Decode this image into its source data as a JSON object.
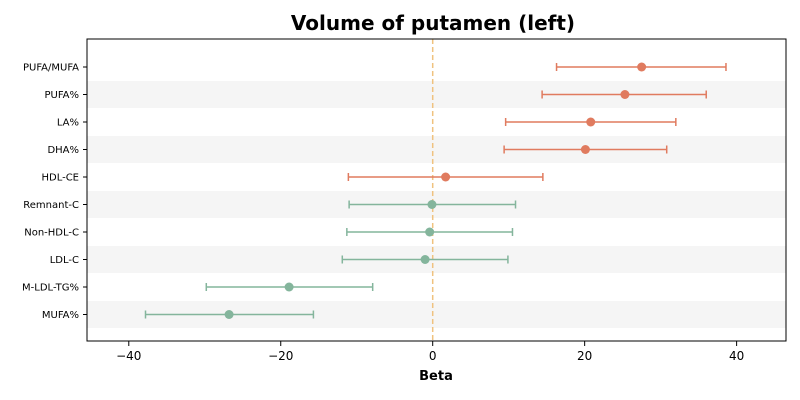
{
  "chart_data": {
    "type": "forest",
    "title": "Volume of putamen (left)",
    "xlabel": "Beta",
    "ylabel": "",
    "xlim": [
      -45.5,
      46.5
    ],
    "xticks": [
      -40,
      -20,
      0,
      20,
      40
    ],
    "xtick_labels": [
      "−40",
      "−20",
      "0",
      "20",
      "40"
    ],
    "reference_line": 0,
    "grid": false,
    "alternating_row_bands": true,
    "colors": {
      "positive": "#e07b5f",
      "negative": "#84b59c",
      "reference_line": "#f0c27f",
      "band": "#f5f5f5"
    },
    "rows": [
      {
        "label": "PUFA/MUFA",
        "beta": 27.5,
        "lower": 16.3,
        "upper": 38.6,
        "color": "positive"
      },
      {
        "label": "PUFA%",
        "beta": 25.3,
        "lower": 14.4,
        "upper": 36.0,
        "color": "positive"
      },
      {
        "label": "LA%",
        "beta": 20.8,
        "lower": 9.6,
        "upper": 32.0,
        "color": "positive"
      },
      {
        "label": "DHA%",
        "beta": 20.1,
        "lower": 9.4,
        "upper": 30.8,
        "color": "positive"
      },
      {
        "label": "HDL-CE",
        "beta": 1.7,
        "lower": -11.1,
        "upper": 14.5,
        "color": "positive"
      },
      {
        "label": "Remnant-C",
        "beta": -0.1,
        "lower": -11.0,
        "upper": 10.9,
        "color": "negative"
      },
      {
        "label": "Non-HDL-C",
        "beta": -0.4,
        "lower": -11.3,
        "upper": 10.5,
        "color": "negative"
      },
      {
        "label": "LDL-C",
        "beta": -1.0,
        "lower": -11.9,
        "upper": 9.9,
        "color": "negative"
      },
      {
        "label": "M-LDL-TG%",
        "beta": -18.9,
        "lower": -29.8,
        "upper": -7.9,
        "color": "negative"
      },
      {
        "label": "MUFA%",
        "beta": -26.8,
        "lower": -37.8,
        "upper": -15.7,
        "color": "negative"
      }
    ]
  }
}
